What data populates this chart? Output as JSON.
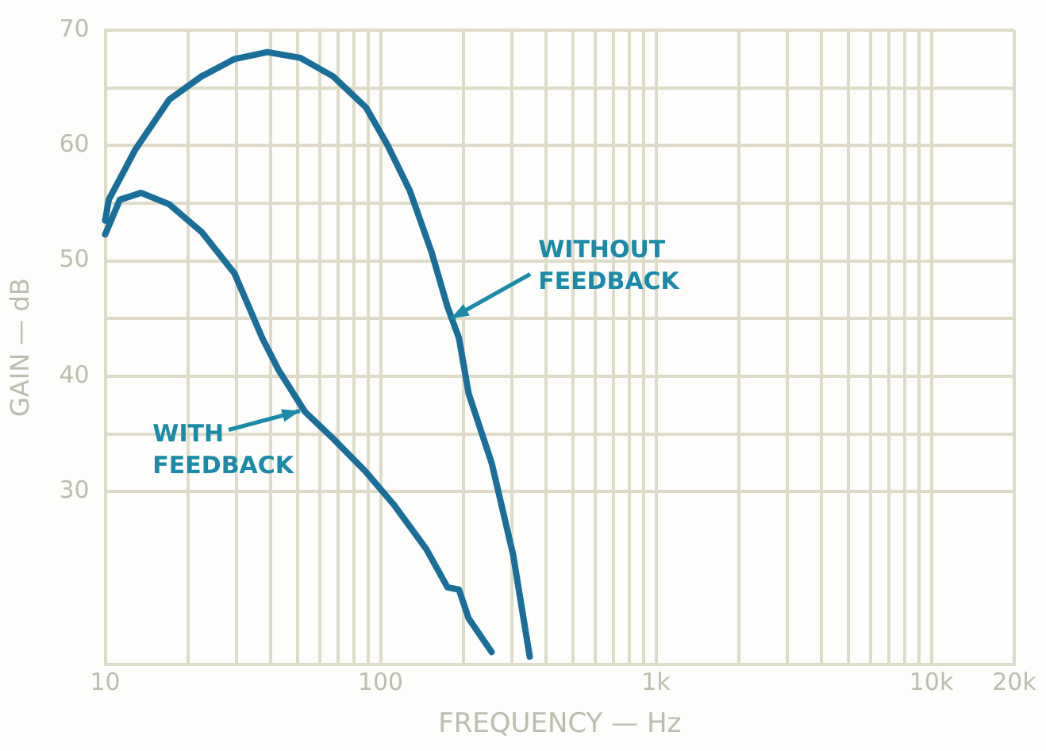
{
  "chart_data": {
    "type": "line",
    "xlabel": "FREQUENCY — Hz",
    "ylabel": "GAIN — dB",
    "log": "x",
    "xlim": [
      10,
      20000
    ],
    "xticks": [
      10,
      {
        "value": 20,
        "label": null
      },
      {
        "value": 30,
        "label": null
      },
      {
        "value": 40,
        "label": null
      },
      {
        "value": 50,
        "label": null
      },
      {
        "value": 60,
        "label": null
      },
      {
        "value": 70,
        "label": null
      },
      {
        "value": 80,
        "label": null
      },
      {
        "value": 90,
        "label": null
      },
      100,
      {
        "value": 200,
        "label": null
      },
      {
        "value": 300,
        "label": null
      },
      {
        "value": 400,
        "label": null
      },
      {
        "value": 500,
        "label": null
      },
      {
        "value": 600,
        "label": null
      },
      {
        "value": 700,
        "label": null
      },
      {
        "value": 800,
        "label": null
      },
      {
        "value": 900,
        "label": null
      },
      {
        "value": 1000,
        "label": "1k"
      },
      {
        "value": 2000,
        "label": null
      },
      {
        "value": 3000,
        "label": null
      },
      {
        "value": 4000,
        "label": null
      },
      {
        "value": 5000,
        "label": null
      },
      {
        "value": 6000,
        "label": null
      },
      {
        "value": 7000,
        "label": null
      },
      {
        "value": 8000,
        "label": null
      },
      {
        "value": 9000,
        "label": null
      },
      {
        "value": 10000,
        "label": "10k"
      },
      {
        "value": 20000,
        "label": "20k"
      }
    ],
    "ylim": [
      15,
      70
    ],
    "yticks": [
      30,
      {
        "value": 35,
        "label": null
      },
      40,
      {
        "value": 45,
        "label": null
      },
      50,
      {
        "value": 55,
        "label": null
      },
      60,
      {
        "value": 65,
        "label": null
      },
      70
    ],
    "grid": true,
    "legend": false,
    "marker": "none",
    "line_style": "solid",
    "series": [
      {
        "color": "#1a6e9a",
        "x": [
          10,
          10.3,
          12.9,
          17.1,
          22.4,
          29.5,
          38.8,
          51.1,
          67.2,
          88.5,
          105.6,
          127.6,
          152.9,
          175,
          192.6,
          208.8,
          253,
          303,
          348
        ],
        "values": [
          53.5,
          55.3,
          59.7,
          64,
          66,
          67.5,
          68.1,
          67.6,
          66,
          63.3,
          60.1,
          56.1,
          50.8,
          46,
          43.3,
          38.5,
          32.5,
          24.5,
          15.7
        ]
      },
      {
        "color": "#1a6e9a",
        "x": [
          10,
          11.3,
          13.5,
          17.1,
          22.4,
          29.5,
          37.2,
          42.7,
          53.2,
          67.2,
          88.5,
          111.4,
          146.7,
          175,
          192.6,
          208.8,
          253
        ],
        "values": [
          52.3,
          55.3,
          55.9,
          54.9,
          52.5,
          48.9,
          43.3,
          40.5,
          36.9,
          34.6,
          31.7,
          28.9,
          25,
          21.7,
          21.5,
          19,
          16.1
        ]
      }
    ],
    "annotations": [
      {
        "text": "WITHOUT\nFEEDBACK",
        "x": 180,
        "y": 45
      },
      {
        "text": "WITH\nFEEDBACK",
        "x": 51,
        "y": 37
      }
    ]
  }
}
